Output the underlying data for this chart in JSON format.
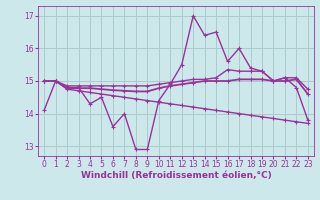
{
  "xlabel": "Windchill (Refroidissement éolien,°C)",
  "bg_color": "#cce8ea",
  "grid_color": "#aacccc",
  "line_color": "#993399",
  "xlim": [
    -0.5,
    23.5
  ],
  "ylim": [
    12.7,
    17.3
  ],
  "yticks": [
    13,
    14,
    15,
    16,
    17
  ],
  "xticks": [
    0,
    1,
    2,
    3,
    4,
    5,
    6,
    7,
    8,
    9,
    10,
    11,
    12,
    13,
    14,
    15,
    16,
    17,
    18,
    19,
    20,
    21,
    22,
    23
  ],
  "series": [
    {
      "x": [
        0,
        1,
        2,
        3,
        4,
        5,
        6,
        7,
        8,
        9,
        10,
        11,
        12,
        13,
        14,
        15,
        16,
        17,
        18,
        19,
        20,
        21,
        22,
        23
      ],
      "y": [
        14.1,
        15.0,
        14.8,
        14.8,
        14.3,
        14.5,
        13.6,
        14.0,
        12.9,
        12.9,
        14.4,
        14.9,
        15.5,
        17.0,
        16.4,
        16.5,
        15.6,
        16.0,
        15.4,
        15.3,
        15.0,
        15.1,
        14.8,
        13.8
      ],
      "color": "#993399",
      "lw": 1.0
    },
    {
      "x": [
        0,
        1,
        2,
        3,
        4,
        5,
        6,
        7,
        8,
        9,
        10,
        11,
        12,
        13,
        14,
        15,
        16,
        17,
        18,
        19,
        20,
        21,
        22,
        23
      ],
      "y": [
        15.0,
        15.0,
        14.85,
        14.85,
        14.85,
        14.85,
        14.85,
        14.85,
        14.85,
        14.85,
        14.9,
        14.95,
        15.0,
        15.05,
        15.05,
        15.1,
        15.35,
        15.3,
        15.3,
        15.3,
        15.0,
        15.1,
        15.1,
        14.75
      ],
      "color": "#993399",
      "lw": 1.0
    },
    {
      "x": [
        0,
        1,
        2,
        3,
        4,
        5,
        6,
        7,
        8,
        9,
        10,
        11,
        12,
        13,
        14,
        15,
        16,
        17,
        18,
        19,
        20,
        21,
        22,
        23
      ],
      "y": [
        15.0,
        15.0,
        14.78,
        14.78,
        14.78,
        14.75,
        14.72,
        14.7,
        14.68,
        14.68,
        14.78,
        14.85,
        14.9,
        14.95,
        15.0,
        15.0,
        15.0,
        15.05,
        15.05,
        15.05,
        15.0,
        15.0,
        15.05,
        14.6
      ],
      "color": "#993399",
      "lw": 1.3
    },
    {
      "x": [
        0,
        1,
        2,
        3,
        4,
        5,
        6,
        7,
        8,
        9,
        10,
        11,
        12,
        13,
        14,
        15,
        16,
        17,
        18,
        19,
        20,
        21,
        22,
        23
      ],
      "y": [
        15.0,
        15.0,
        14.75,
        14.7,
        14.65,
        14.6,
        14.55,
        14.5,
        14.45,
        14.4,
        14.35,
        14.3,
        14.25,
        14.2,
        14.15,
        14.1,
        14.05,
        14.0,
        13.95,
        13.9,
        13.85,
        13.8,
        13.75,
        13.7
      ],
      "color": "#993399",
      "lw": 1.0
    }
  ],
  "marker": "+",
  "markersize": 3.5,
  "markeredgewidth": 0.8,
  "tick_fontsize": 5.5,
  "xlabel_fontsize": 6.5
}
